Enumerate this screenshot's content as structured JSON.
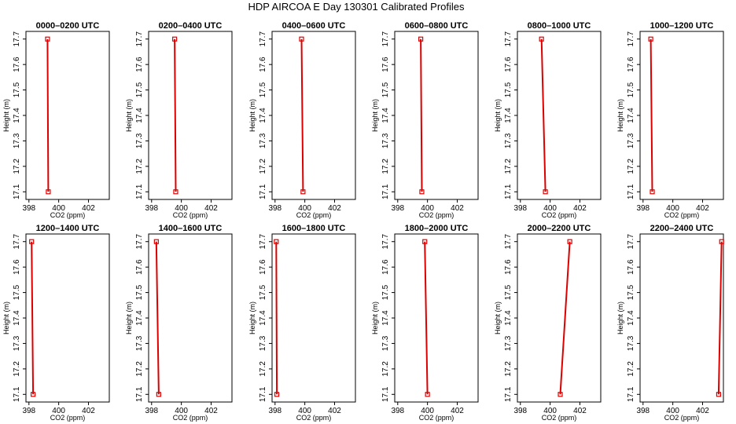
{
  "figure_title": "HDP AIRCOA E  Day 130301  Calibrated Profiles",
  "colors": {
    "series": "#dd0000",
    "axes": "#000000",
    "background": "#ffffff"
  },
  "chart_data": [
    {
      "type": "line",
      "title": "0000–0200 UTC",
      "xlabel": "CO2 (ppm)",
      "ylabel": "Height (m)",
      "xlim": [
        397.8,
        403.4
      ],
      "ylim": [
        17.07,
        17.73
      ],
      "xticks": [
        398,
        400,
        402
      ],
      "yticks": [
        17.1,
        17.2,
        17.3,
        17.4,
        17.5,
        17.6,
        17.7
      ],
      "grid": false,
      "series": [
        {
          "x": [
            399.3,
            399.25
          ],
          "y": [
            17.1,
            17.7
          ]
        }
      ]
    },
    {
      "type": "line",
      "title": "0200–0400 UTC",
      "xlabel": "CO2 (ppm)",
      "ylabel": "Height (m)",
      "xlim": [
        397.8,
        403.4
      ],
      "ylim": [
        17.07,
        17.73
      ],
      "xticks": [
        398,
        400,
        402
      ],
      "yticks": [
        17.1,
        17.2,
        17.3,
        17.4,
        17.5,
        17.6,
        17.7
      ],
      "grid": false,
      "series": [
        {
          "x": [
            399.62,
            399.55
          ],
          "y": [
            17.1,
            17.7
          ]
        }
      ]
    },
    {
      "type": "line",
      "title": "0400–0600 UTC",
      "xlabel": "CO2 (ppm)",
      "ylabel": "Height (m)",
      "xlim": [
        397.8,
        403.4
      ],
      "ylim": [
        17.07,
        17.73
      ],
      "xticks": [
        398,
        400,
        402
      ],
      "yticks": [
        17.1,
        17.2,
        17.3,
        17.4,
        17.5,
        17.6,
        17.7
      ],
      "grid": false,
      "series": [
        {
          "x": [
            399.88,
            399.78
          ],
          "y": [
            17.1,
            17.7
          ]
        }
      ]
    },
    {
      "type": "line",
      "title": "0600–0800 UTC",
      "xlabel": "CO2 (ppm)",
      "ylabel": "Height (m)",
      "xlim": [
        397.8,
        403.4
      ],
      "ylim": [
        17.07,
        17.73
      ],
      "xticks": [
        398,
        400,
        402
      ],
      "yticks": [
        17.1,
        17.2,
        17.3,
        17.4,
        17.5,
        17.6,
        17.7
      ],
      "grid": false,
      "series": [
        {
          "x": [
            399.62,
            399.55
          ],
          "y": [
            17.1,
            17.7
          ]
        }
      ]
    },
    {
      "type": "line",
      "title": "0800–1000 UTC",
      "xlabel": "CO2 (ppm)",
      "ylabel": "Height (m)",
      "xlim": [
        397.8,
        403.4
      ],
      "ylim": [
        17.07,
        17.73
      ],
      "xticks": [
        398,
        400,
        402
      ],
      "yticks": [
        17.1,
        17.2,
        17.3,
        17.4,
        17.5,
        17.6,
        17.7
      ],
      "grid": false,
      "series": [
        {
          "x": [
            399.68,
            399.42
          ],
          "y": [
            17.1,
            17.7
          ]
        }
      ]
    },
    {
      "type": "line",
      "title": "1000–1200 UTC",
      "xlabel": "CO2 (ppm)",
      "ylabel": "Height (m)",
      "xlim": [
        397.8,
        403.4
      ],
      "ylim": [
        17.07,
        17.73
      ],
      "xticks": [
        398,
        400,
        402
      ],
      "yticks": [
        17.1,
        17.2,
        17.3,
        17.4,
        17.5,
        17.6,
        17.7
      ],
      "grid": false,
      "series": [
        {
          "x": [
            398.62,
            398.52
          ],
          "y": [
            17.1,
            17.7
          ]
        }
      ]
    },
    {
      "type": "line",
      "title": "1200–1400 UTC",
      "xlabel": "CO2 (ppm)",
      "ylabel": "Height (m)",
      "xlim": [
        397.8,
        403.4
      ],
      "ylim": [
        17.07,
        17.73
      ],
      "xticks": [
        398,
        400,
        402
      ],
      "yticks": [
        17.1,
        17.2,
        17.3,
        17.4,
        17.5,
        17.6,
        17.7
      ],
      "grid": false,
      "series": [
        {
          "x": [
            398.28,
            398.18
          ],
          "y": [
            17.1,
            17.7
          ]
        }
      ]
    },
    {
      "type": "line",
      "title": "1400–1600 UTC",
      "xlabel": "CO2 (ppm)",
      "ylabel": "Height (m)",
      "xlim": [
        397.8,
        403.4
      ],
      "ylim": [
        17.07,
        17.73
      ],
      "xticks": [
        398,
        400,
        402
      ],
      "yticks": [
        17.1,
        17.2,
        17.3,
        17.4,
        17.5,
        17.6,
        17.7
      ],
      "grid": false,
      "series": [
        {
          "x": [
            398.48,
            398.32
          ],
          "y": [
            17.1,
            17.7
          ]
        }
      ]
    },
    {
      "type": "line",
      "title": "1600–1800 UTC",
      "xlabel": "CO2 (ppm)",
      "ylabel": "Height (m)",
      "xlim": [
        397.8,
        403.4
      ],
      "ylim": [
        17.07,
        17.73
      ],
      "xticks": [
        398,
        400,
        402
      ],
      "yticks": [
        17.1,
        17.2,
        17.3,
        17.4,
        17.5,
        17.6,
        17.7
      ],
      "grid": false,
      "series": [
        {
          "x": [
            398.12,
            398.08
          ],
          "y": [
            17.1,
            17.7
          ]
        }
      ]
    },
    {
      "type": "line",
      "title": "1800–2000 UTC",
      "xlabel": "CO2 (ppm)",
      "ylabel": "Height (m)",
      "xlim": [
        397.8,
        403.4
      ],
      "ylim": [
        17.07,
        17.73
      ],
      "xticks": [
        398,
        400,
        402
      ],
      "yticks": [
        17.1,
        17.2,
        17.3,
        17.4,
        17.5,
        17.6,
        17.7
      ],
      "grid": false,
      "series": [
        {
          "x": [
            400.0,
            399.82
          ],
          "y": [
            17.1,
            17.7
          ]
        }
      ]
    },
    {
      "type": "line",
      "title": "2000–2200 UTC",
      "xlabel": "CO2 (ppm)",
      "ylabel": "Height (m)",
      "xlim": [
        397.8,
        403.4
      ],
      "ylim": [
        17.07,
        17.73
      ],
      "xticks": [
        398,
        400,
        402
      ],
      "yticks": [
        17.1,
        17.2,
        17.3,
        17.4,
        17.5,
        17.6,
        17.7
      ],
      "grid": false,
      "series": [
        {
          "x": [
            400.68,
            401.32
          ],
          "y": [
            17.1,
            17.7
          ]
        }
      ]
    },
    {
      "type": "line",
      "title": "2200–2400 UTC",
      "xlabel": "CO2 (ppm)",
      "ylabel": "Height (m)",
      "xlim": [
        397.8,
        403.4
      ],
      "ylim": [
        17.07,
        17.73
      ],
      "xticks": [
        398,
        400,
        402
      ],
      "yticks": [
        17.1,
        17.2,
        17.3,
        17.4,
        17.5,
        17.6,
        17.7
      ],
      "grid": false,
      "series": [
        {
          "x": [
            403.08,
            403.28
          ],
          "y": [
            17.1,
            17.7
          ]
        }
      ]
    }
  ]
}
